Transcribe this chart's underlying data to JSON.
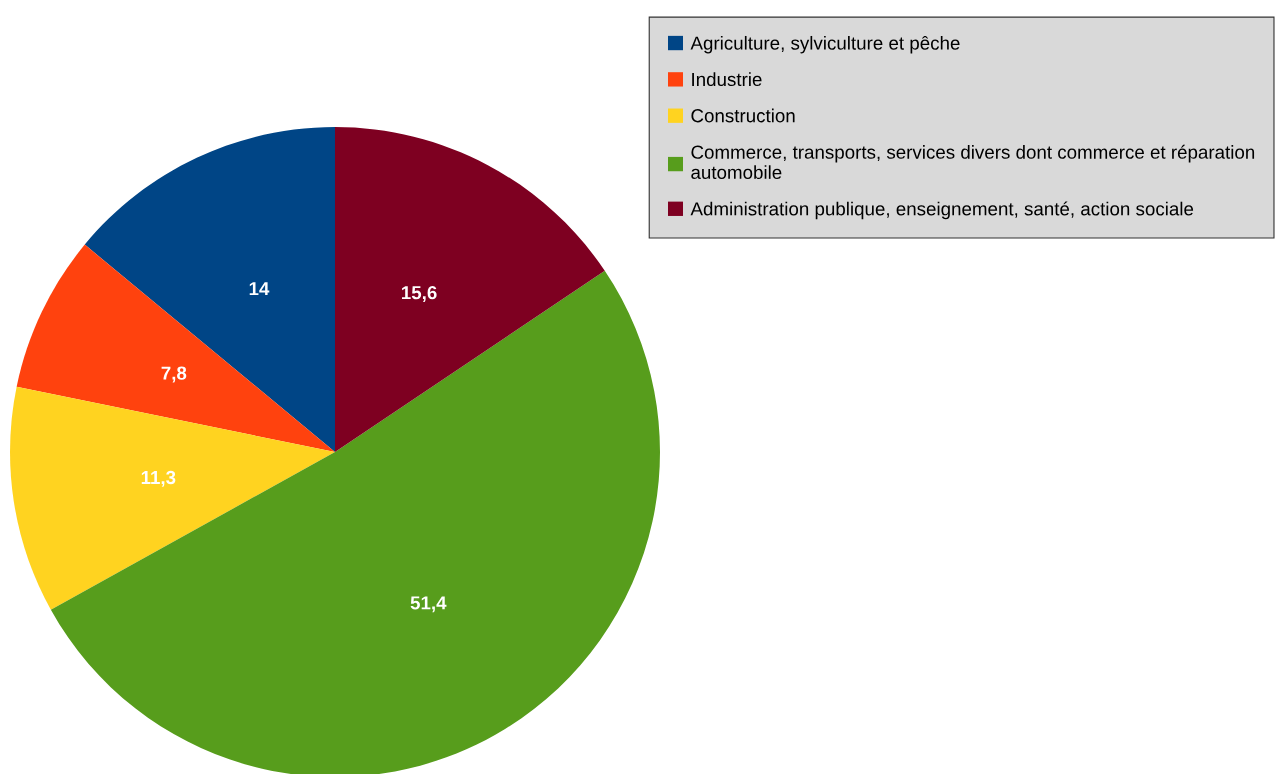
{
  "chart_data": {
    "type": "pie",
    "categories": [
      "Agriculture, sylviculture et pêche",
      "Industrie",
      "Construction",
      "Commerce, transports, services divers dont commerce et réparation automobile",
      "Administration publique, enseignement, santé, action sociale"
    ],
    "values": [
      14,
      7.8,
      11.3,
      51.4,
      15.6
    ],
    "value_labels": [
      "14",
      "7,8",
      "11,3",
      "51,4",
      "15,6"
    ],
    "colors": [
      "#004586",
      "#ff420e",
      "#ffd320",
      "#579d1c",
      "#7e0021"
    ],
    "legend": "top right"
  }
}
